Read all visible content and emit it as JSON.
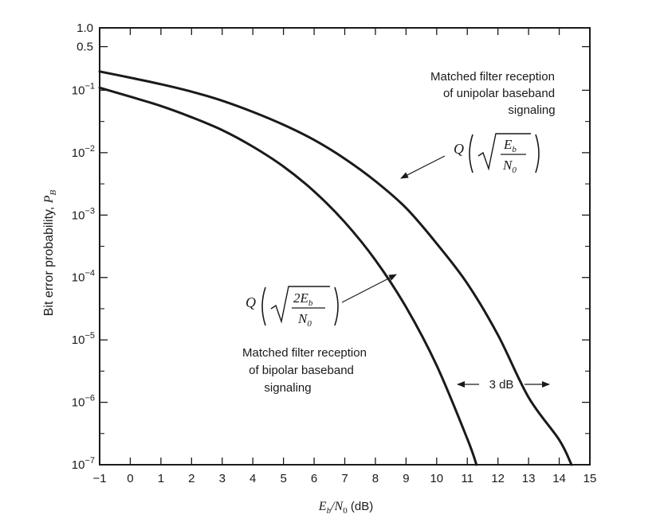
{
  "chart_data": {
    "type": "line",
    "title": "",
    "xlabel": {
      "main": "E",
      "sub1": "b",
      "mid": "/N",
      "sub2": "0",
      "unit": " (dB)"
    },
    "ylabel": {
      "main": "Bit error probability, ",
      "var": "P",
      "sub": "B"
    },
    "x_ticks": [
      "−1",
      "0",
      "1",
      "2",
      "3",
      "4",
      "5",
      "6",
      "7",
      "8",
      "9",
      "10",
      "11",
      "12",
      "13",
      "14",
      "15"
    ],
    "y_ticks": [
      {
        "value": 1.0,
        "base": "1.0",
        "exp": ""
      },
      {
        "value": 0.5,
        "base": "0.5",
        "exp": ""
      },
      {
        "value": 0.1,
        "base": "10",
        "exp": "−1"
      },
      {
        "value": 0.01,
        "base": "10",
        "exp": "−2"
      },
      {
        "value": 0.001,
        "base": "10",
        "exp": "−3"
      },
      {
        "value": 0.0001,
        "base": "10",
        "exp": "−4"
      },
      {
        "value": 1e-05,
        "base": "10",
        "exp": "−5"
      },
      {
        "value": 1e-06,
        "base": "10",
        "exp": "−6"
      },
      {
        "value": 1e-07,
        "base": "10",
        "exp": "−7"
      }
    ],
    "xlim": [
      -1,
      15
    ],
    "ylim": [
      1e-07,
      1.0
    ],
    "yscale": "log",
    "grid": false,
    "series": [
      {
        "name": "unipolar",
        "x": [
          -1,
          0,
          1,
          2,
          3,
          4,
          5,
          6,
          7,
          8,
          9,
          10,
          11,
          12,
          13,
          14,
          14.4
        ],
        "y": [
          0.2,
          0.159,
          0.125,
          0.095,
          0.068,
          0.045,
          0.028,
          0.016,
          0.008,
          0.0035,
          0.0013,
          0.00035,
          8e-05,
          1.2e-05,
          1.2e-06,
          2.5e-07,
          1e-07
        ]
      },
      {
        "name": "bipolar",
        "x": [
          -1,
          0,
          1,
          2,
          3,
          4,
          5,
          6,
          7,
          8,
          9,
          10,
          11,
          11.3
        ],
        "y": [
          0.11,
          0.079,
          0.056,
          0.037,
          0.023,
          0.0125,
          0.006,
          0.0024,
          0.00077,
          0.00019,
          3.36e-05,
          3.9e-06,
          2.6e-07,
          1e-07
        ]
      }
    ],
    "annotations": {
      "unipolar_label": [
        "Matched filter reception",
        "of unipolar baseband",
        "signaling"
      ],
      "bipolar_label": [
        "Matched filter reception",
        "of bipolar baseband",
        "signaling"
      ],
      "unipolar_formula": {
        "q": "Q",
        "num": "E",
        "num_sub": "b",
        "den": "N",
        "den_sub": "0"
      },
      "bipolar_formula": {
        "q": "Q",
        "num": "2E",
        "num_sub": "b",
        "den": "N",
        "den_sub": "0"
      },
      "gap_label": "3 dB"
    }
  }
}
